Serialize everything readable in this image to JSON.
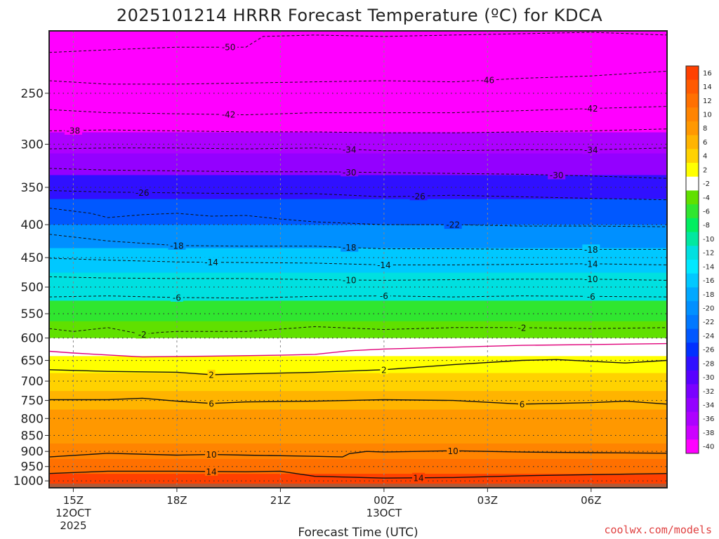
{
  "chart_data": {
    "type": "heatmap",
    "title": "2025101214 HRRR Forecast Temperature (ºC) for KDCA",
    "xlabel": "Forecast Time (UTC)",
    "ylabel": "",
    "y_scale": "log-pressure",
    "y_tick_labels": [
      "250",
      "300",
      "350",
      "400",
      "450",
      "500",
      "550",
      "600",
      "650",
      "700",
      "750",
      "800",
      "850",
      "900",
      "950",
      "1000"
    ],
    "y_ticks": [
      250,
      300,
      350,
      400,
      450,
      500,
      550,
      600,
      650,
      700,
      750,
      800,
      850,
      900,
      950,
      1000
    ],
    "ylim": [
      200,
      1025
    ],
    "x_ticks": [
      {
        "label": "15Z",
        "date": "12OCT",
        "year": "2025"
      },
      {
        "label": "18Z",
        "date": "",
        "year": ""
      },
      {
        "label": "21Z",
        "date": "",
        "year": ""
      },
      {
        "label": "00Z",
        "date": "13OCT",
        "year": ""
      },
      {
        "label": "03Z",
        "date": "",
        "year": ""
      },
      {
        "label": "06Z",
        "date": "",
        "year": ""
      }
    ],
    "x_hours": [
      15,
      18,
      21,
      24,
      27,
      30
    ],
    "xlim": [
      14.3,
      32.2
    ],
    "grid": true,
    "surface_pressure": 1010,
    "colorbar_levels": [
      16,
      14,
      12,
      10,
      8,
      6,
      4,
      2,
      -2,
      -4,
      -6,
      -8,
      -10,
      -12,
      -14,
      -16,
      -18,
      -20,
      -22,
      -24,
      -26,
      -28,
      -30,
      -32,
      -34,
      -36,
      -38,
      -40
    ],
    "colorbar_colors": [
      "#ff4000",
      "#ff5a00",
      "#ff7000",
      "#ff8400",
      "#ff9800",
      "#ffb400",
      "#ffd200",
      "#ffff00",
      "#ffffff",
      "#60e000",
      "#30e630",
      "#00ee60",
      "#00e8a0",
      "#00e0e0",
      "#00e8ff",
      "#00c8ff",
      "#00a8ff",
      "#0090ff",
      "#0078ff",
      "#0058ff",
      "#0030ff",
      "#3010ff",
      "#5800ff",
      "#7a00ff",
      "#9400ff",
      "#ad00ff",
      "#cc00ff",
      "#ff00ff"
    ],
    "profile": [
      {
        "p": 200,
        "t": -56
      },
      {
        "p": 230,
        "t": -50
      },
      {
        "p": 250,
        "t": -46
      },
      {
        "p": 275,
        "t": -42
      },
      {
        "p": 300,
        "t": -36
      },
      {
        "p": 320,
        "t": -33
      },
      {
        "p": 350,
        "t": -28
      },
      {
        "p": 380,
        "t": -24
      },
      {
        "p": 420,
        "t": -20
      },
      {
        "p": 450,
        "t": -16
      },
      {
        "p": 500,
        "t": -11
      },
      {
        "p": 550,
        "t": -6
      },
      {
        "p": 580,
        "t": -3
      },
      {
        "p": 620,
        "t": 0
      },
      {
        "p": 660,
        "t": 3
      },
      {
        "p": 700,
        "t": 5
      },
      {
        "p": 750,
        "t": 7
      },
      {
        "p": 800,
        "t": 8
      },
      {
        "p": 850,
        "t": 9
      },
      {
        "p": 900,
        "t": 10
      },
      {
        "p": 950,
        "t": 13
      },
      {
        "p": 1000,
        "t": 16
      }
    ],
    "contours": [
      {
        "level": -50,
        "style": "dashed",
        "points": [
          [
            14.3,
            216
          ],
          [
            16,
            214
          ],
          [
            18,
            212
          ],
          [
            20,
            212
          ],
          [
            20.5,
            204
          ],
          [
            22,
            203
          ],
          [
            24,
            204
          ],
          [
            26,
            203
          ],
          [
            28,
            202
          ],
          [
            30,
            201
          ],
          [
            32.2,
            203
          ]
        ],
        "labels": [
          {
            "label": "-50",
            "x": 19.5
          }
        ]
      },
      {
        "level": -46,
        "style": "dashed",
        "points": [
          [
            14.3,
            239
          ],
          [
            16,
            242
          ],
          [
            18,
            242
          ],
          [
            20,
            241
          ],
          [
            22,
            240
          ],
          [
            24,
            239
          ],
          [
            26,
            240
          ],
          [
            28,
            237
          ],
          [
            30,
            235
          ],
          [
            32.2,
            231
          ]
        ],
        "labels": [
          {
            "label": "-46",
            "x": 27
          }
        ]
      },
      {
        "level": -42,
        "style": "dashed",
        "points": [
          [
            14.3,
            265
          ],
          [
            16,
            268
          ],
          [
            18,
            269
          ],
          [
            20,
            270
          ],
          [
            22,
            268
          ],
          [
            24,
            268
          ],
          [
            26,
            268
          ],
          [
            28,
            266
          ],
          [
            30,
            264
          ],
          [
            32.2,
            262
          ]
        ],
        "labels": [
          {
            "label": "-42",
            "x": 19.5
          },
          {
            "label": "-42",
            "x": 30
          }
        ]
      },
      {
        "level": -38,
        "style": "dashed",
        "points": [
          [
            14.3,
            286
          ],
          [
            16,
            285
          ],
          [
            18,
            286
          ],
          [
            20,
            287
          ],
          [
            22,
            287
          ],
          [
            24,
            288
          ],
          [
            26,
            288
          ],
          [
            28,
            287
          ],
          [
            30,
            286
          ],
          [
            32.2,
            284
          ]
        ],
        "labels": [
          {
            "label": "-38",
            "x": 15
          }
        ]
      },
      {
        "level": -34,
        "style": "dashed",
        "points": [
          [
            14.3,
            305
          ],
          [
            16,
            304
          ],
          [
            18,
            304
          ],
          [
            20,
            305
          ],
          [
            22,
            304
          ],
          [
            24,
            307
          ],
          [
            26,
            307
          ],
          [
            28,
            306
          ],
          [
            30,
            306
          ],
          [
            32.2,
            304
          ]
        ],
        "labels": [
          {
            "label": "-34",
            "x": 23
          },
          {
            "label": "-34",
            "x": 30
          }
        ]
      },
      {
        "level": -30,
        "style": "dashed",
        "points": [
          [
            14.3,
            327
          ],
          [
            16,
            329
          ],
          [
            18,
            330
          ],
          [
            20,
            331
          ],
          [
            22,
            331
          ],
          [
            24,
            332
          ],
          [
            26,
            333
          ],
          [
            28,
            334
          ],
          [
            30,
            336
          ],
          [
            32.2,
            339
          ]
        ],
        "labels": [
          {
            "label": "-30",
            "x": 23
          },
          {
            "label": "-30",
            "x": 29
          }
        ]
      },
      {
        "level": -26,
        "style": "dashed",
        "points": [
          [
            14.3,
            354
          ],
          [
            16,
            356
          ],
          [
            18,
            357
          ],
          [
            20,
            358
          ],
          [
            22,
            358
          ],
          [
            24,
            362
          ],
          [
            26,
            360
          ],
          [
            28,
            362
          ],
          [
            30,
            364
          ],
          [
            32.2,
            366
          ]
        ],
        "labels": [
          {
            "label": "-26",
            "x": 17
          },
          {
            "label": "-26",
            "x": 25
          }
        ]
      },
      {
        "level": -22,
        "style": "dashed",
        "points": [
          [
            14.3,
            377
          ],
          [
            15.5,
            384
          ],
          [
            16,
            390
          ],
          [
            17,
            386
          ],
          [
            18,
            384
          ],
          [
            19,
            388
          ],
          [
            20,
            387
          ],
          [
            21,
            392
          ],
          [
            22,
            396
          ],
          [
            24,
            400
          ],
          [
            26,
            400
          ],
          [
            28,
            402
          ],
          [
            30,
            402
          ],
          [
            32.2,
            403
          ]
        ],
        "labels": [
          {
            "label": "-22",
            "x": 26
          }
        ]
      },
      {
        "level": -18,
        "style": "dashed",
        "points": [
          [
            14.3,
            414
          ],
          [
            16,
            424
          ],
          [
            18,
            431
          ],
          [
            20,
            432
          ],
          [
            22,
            432
          ],
          [
            24,
            436
          ],
          [
            26,
            436
          ],
          [
            28,
            437
          ],
          [
            30,
            437
          ],
          [
            32.2,
            437
          ]
        ],
        "labels": [
          {
            "label": "-18",
            "x": 18
          },
          {
            "label": "-18",
            "x": 23
          },
          {
            "label": "-18",
            "x": 30
          }
        ]
      },
      {
        "level": -14,
        "style": "dashed",
        "points": [
          [
            14.3,
            451
          ],
          [
            16,
            454
          ],
          [
            18,
            457
          ],
          [
            20,
            458
          ],
          [
            22,
            459
          ],
          [
            24,
            462
          ],
          [
            26,
            462
          ],
          [
            28,
            461
          ],
          [
            30,
            460
          ],
          [
            32.2,
            462
          ]
        ],
        "labels": [
          {
            "label": "-14",
            "x": 19
          },
          {
            "label": "-14",
            "x": 24
          },
          {
            "label": "-14",
            "x": 30
          }
        ]
      },
      {
        "level": -10,
        "style": "dashed",
        "points": [
          [
            14.3,
            482
          ],
          [
            16,
            484
          ],
          [
            18,
            485
          ],
          [
            20,
            485
          ],
          [
            22,
            487
          ],
          [
            24,
            488
          ],
          [
            26,
            487
          ],
          [
            28,
            486
          ],
          [
            30,
            486
          ],
          [
            32.2,
            488
          ]
        ],
        "labels": [
          {
            "label": "-10",
            "x": 23
          },
          {
            "label": "-10",
            "x": 30
          }
        ]
      },
      {
        "level": -6,
        "style": "dashed",
        "points": [
          [
            14.3,
            518
          ],
          [
            16,
            516
          ],
          [
            18,
            519
          ],
          [
            20,
            520
          ],
          [
            22,
            517
          ],
          [
            24,
            516
          ],
          [
            26,
            518
          ],
          [
            28,
            516
          ],
          [
            30,
            517
          ],
          [
            32.2,
            518
          ]
        ],
        "labels": [
          {
            "label": "-6",
            "x": 18
          },
          {
            "label": "-6",
            "x": 24
          },
          {
            "label": "-6",
            "x": 30
          }
        ]
      },
      {
        "level": -2,
        "style": "dashed",
        "points": [
          [
            14.3,
            580
          ],
          [
            15,
            586
          ],
          [
            16,
            578
          ],
          [
            17,
            592
          ],
          [
            17.5,
            588
          ],
          [
            18,
            586
          ],
          [
            20,
            586
          ],
          [
            22,
            576
          ],
          [
            24,
            582
          ],
          [
            26,
            578
          ],
          [
            28,
            578
          ],
          [
            30,
            580
          ],
          [
            32.2,
            578
          ]
        ],
        "labels": [
          {
            "label": "-2",
            "x": 17
          },
          {
            "label": "-2",
            "x": 28
          }
        ]
      },
      {
        "level": 0,
        "style": "solid",
        "color": "#e0007a",
        "points": [
          [
            14.3,
            629
          ],
          [
            15,
            633
          ],
          [
            17,
            642
          ],
          [
            19,
            640
          ],
          [
            21,
            638
          ],
          [
            22,
            636
          ],
          [
            23,
            628
          ],
          [
            24,
            624
          ],
          [
            26,
            620
          ],
          [
            28,
            616
          ],
          [
            30,
            614
          ],
          [
            32.2,
            612
          ]
        ],
        "labels": []
      },
      {
        "level": 2,
        "style": "solid",
        "points": [
          [
            14.3,
            672
          ],
          [
            16,
            676
          ],
          [
            18,
            678
          ],
          [
            19,
            684
          ],
          [
            20,
            682
          ],
          [
            22,
            678
          ],
          [
            24,
            672
          ],
          [
            25,
            666
          ],
          [
            26,
            660
          ],
          [
            28,
            650
          ],
          [
            29,
            648
          ],
          [
            30,
            652
          ],
          [
            31,
            656
          ],
          [
            32.2,
            650
          ]
        ],
        "labels": [
          {
            "label": "2",
            "x": 19
          },
          {
            "label": "2",
            "x": 24
          }
        ]
      },
      {
        "level": 6,
        "style": "solid",
        "points": [
          [
            14.3,
            748
          ],
          [
            16,
            748
          ],
          [
            17,
            744
          ],
          [
            18,
            752
          ],
          [
            19,
            758
          ],
          [
            20,
            754
          ],
          [
            22,
            752
          ],
          [
            24,
            748
          ],
          [
            26,
            750
          ],
          [
            28,
            760
          ],
          [
            30,
            756
          ],
          [
            31,
            752
          ],
          [
            32.2,
            760
          ]
        ],
        "labels": [
          {
            "label": "6",
            "x": 19
          },
          {
            "label": "6",
            "x": 28
          }
        ]
      },
      {
        "level": 10,
        "style": "solid",
        "points": [
          [
            14.3,
            918
          ],
          [
            16,
            906
          ],
          [
            18,
            912
          ],
          [
            19,
            910
          ],
          [
            20,
            912
          ],
          [
            21,
            914
          ],
          [
            22,
            916
          ],
          [
            22.8,
            918
          ],
          [
            23,
            907
          ],
          [
            23.5,
            900
          ],
          [
            24,
            902
          ],
          [
            26,
            898
          ],
          [
            28,
            902
          ],
          [
            30,
            904
          ],
          [
            32.2,
            906
          ]
        ],
        "labels": [
          {
            "label": "10",
            "x": 19
          },
          {
            "label": "10",
            "x": 26
          }
        ]
      },
      {
        "level": 14,
        "style": "solid",
        "points": [
          [
            14.3,
            974
          ],
          [
            16,
            966
          ],
          [
            18,
            966
          ],
          [
            20,
            968
          ],
          [
            21,
            966
          ],
          [
            22,
            984
          ],
          [
            24,
            990
          ],
          [
            26,
            988
          ],
          [
            28,
            982
          ],
          [
            30,
            978
          ],
          [
            32.2,
            974
          ]
        ],
        "labels": [
          {
            "label": "14",
            "x": 19
          },
          {
            "label": "14",
            "x": 25
          }
        ]
      }
    ]
  },
  "source_label": "coolwx.com/models"
}
